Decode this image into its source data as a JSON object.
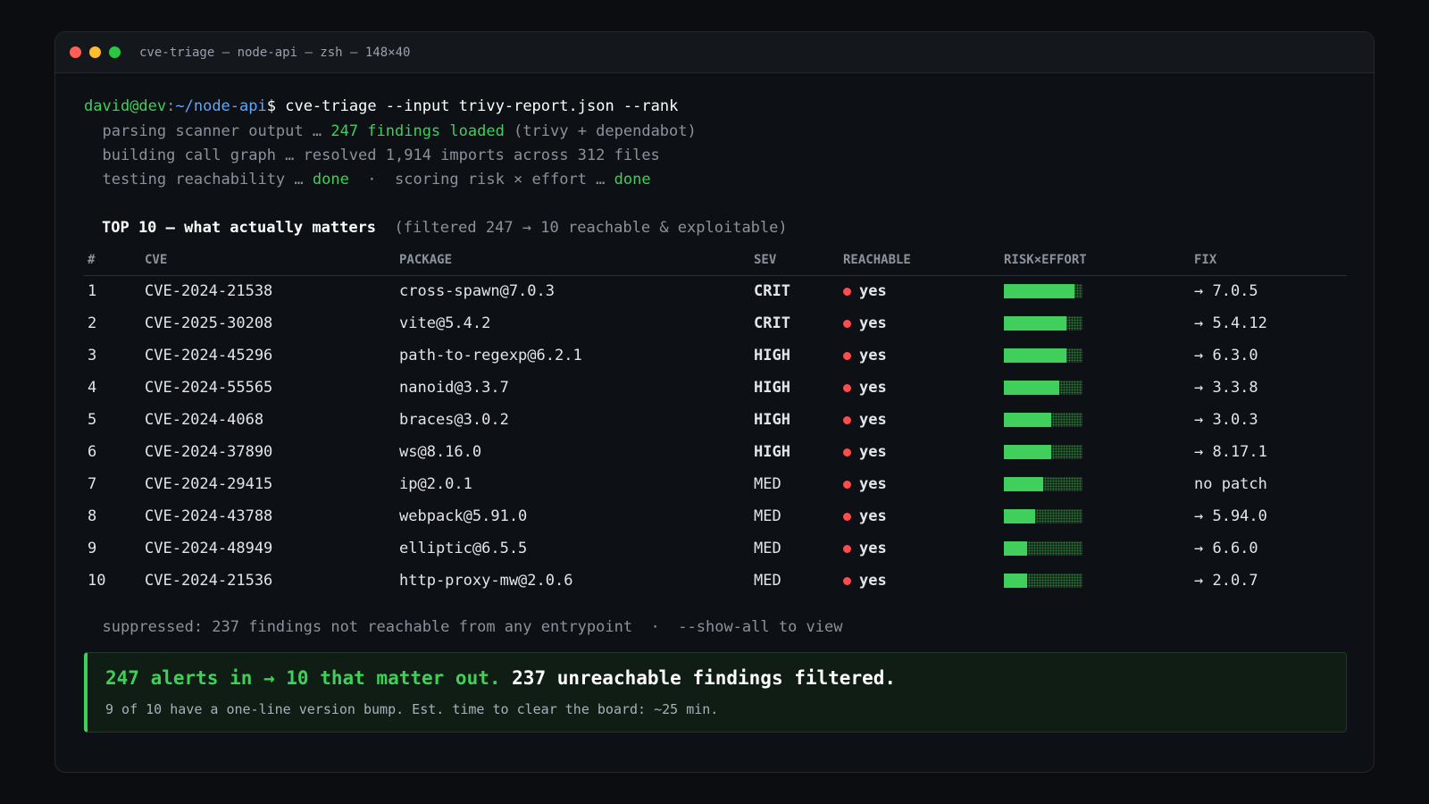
{
  "window": {
    "title": "cve-triage — node-api — zsh — 148×40"
  },
  "prompt": {
    "user_host": "david@dev",
    "sep": ":",
    "path": "~/node-api",
    "symbol": "$",
    "command": " cve-triage --input trivy-report.json --rank"
  },
  "log": {
    "l1_a": "  parsing scanner output … ",
    "l1_b": "247 findings loaded",
    "l1_c": " (trivy + dependabot)",
    "l2": "  building call graph … resolved 1,914 imports across 312 files",
    "l3_a": "  testing reachability … ",
    "l3_b": "done",
    "l3_c": "  ·  scoring risk × effort … ",
    "l3_d": "done"
  },
  "section": {
    "title": "TOP 10 — what actually matters",
    "subtitle": "  (filtered 247 → 10 reachable & exploitable)"
  },
  "table": {
    "headers": {
      "num": "#",
      "cve": "CVE",
      "package": "PACKAGE",
      "sev": "SEV",
      "reachable": "REACHABLE",
      "risk": "RISK×EFFORT",
      "fix": "FIX"
    },
    "rows": [
      {
        "num": "1",
        "cve": "CVE-2024-21538",
        "package": "cross-spawn@7.0.3",
        "sev": "CRIT",
        "reachable": "yes",
        "risk": 0.9,
        "fix": "→ 7.0.5"
      },
      {
        "num": "2",
        "cve": "CVE-2025-30208",
        "package": "vite@5.4.2",
        "sev": "CRIT",
        "reachable": "yes",
        "risk": 0.8,
        "fix": "→ 5.4.12"
      },
      {
        "num": "3",
        "cve": "CVE-2024-45296",
        "package": "path-to-regexp@6.2.1",
        "sev": "HIGH",
        "reachable": "yes",
        "risk": 0.8,
        "fix": "→ 6.3.0"
      },
      {
        "num": "4",
        "cve": "CVE-2024-55565",
        "package": "nanoid@3.3.7",
        "sev": "HIGH",
        "reachable": "yes",
        "risk": 0.7,
        "fix": "→ 3.3.8"
      },
      {
        "num": "5",
        "cve": "CVE-2024-4068",
        "package": "braces@3.0.2",
        "sev": "HIGH",
        "reachable": "yes",
        "risk": 0.6,
        "fix": "→ 3.0.3"
      },
      {
        "num": "6",
        "cve": "CVE-2024-37890",
        "package": "ws@8.16.0",
        "sev": "HIGH",
        "reachable": "yes",
        "risk": 0.6,
        "fix": "→ 8.17.1"
      },
      {
        "num": "7",
        "cve": "CVE-2024-29415",
        "package": "ip@2.0.1",
        "sev": "MED",
        "reachable": "yes",
        "risk": 0.5,
        "fix": "no patch"
      },
      {
        "num": "8",
        "cve": "CVE-2024-43788",
        "package": "webpack@5.91.0",
        "sev": "MED",
        "reachable": "yes",
        "risk": 0.4,
        "fix": "→ 5.94.0"
      },
      {
        "num": "9",
        "cve": "CVE-2024-48949",
        "package": "elliptic@6.5.5",
        "sev": "MED",
        "reachable": "yes",
        "risk": 0.3,
        "fix": "→ 6.6.0"
      },
      {
        "num": "10",
        "cve": "CVE-2024-21536",
        "package": "http-proxy-mw@2.0.6",
        "sev": "MED",
        "reachable": "yes",
        "risk": 0.3,
        "fix": "→ 2.0.7"
      }
    ]
  },
  "suppressed": "  suppressed: 237 findings not reachable from any entrypoint  ·  --show-all to view",
  "summary": {
    "headline_green": "247 alerts in → 10 that matter out.",
    "headline_white": " 237 unreachable findings filtered.",
    "sub": "9 of 10 have a one-line version bump. Est. time to clear the board: ~25 min."
  },
  "colors": {
    "accent": "#3fcf5a",
    "crit": "#ff5555",
    "high": "#ff9f43",
    "med": "#f0b429",
    "path": "#5aa8ff"
  }
}
